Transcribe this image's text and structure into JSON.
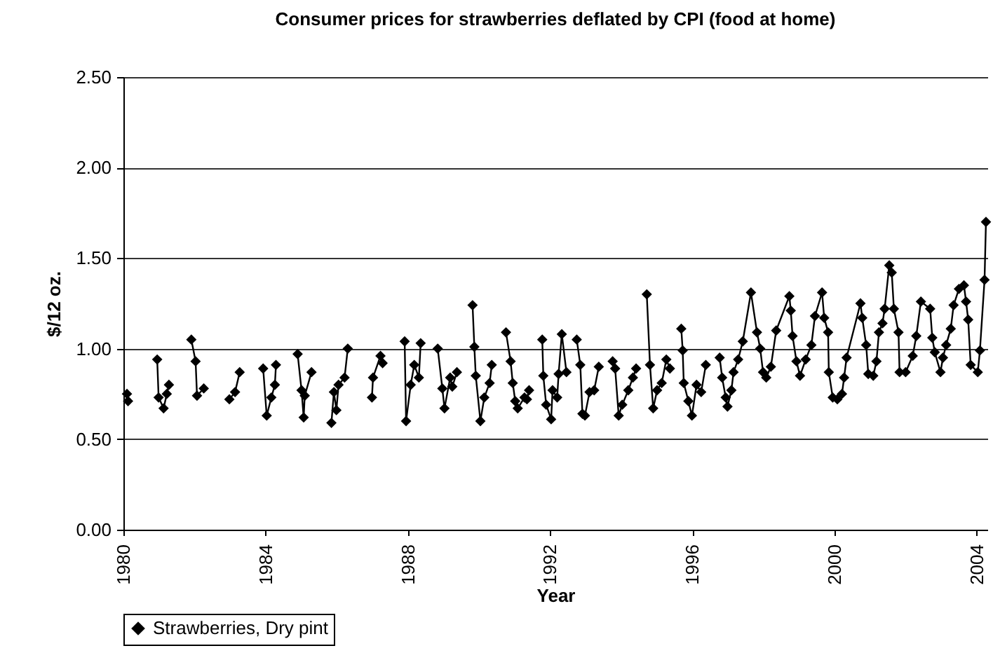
{
  "chart_data": {
    "type": "line",
    "title": "Consumer prices for strawberries deflated by CPI (food at home)",
    "xlabel": "Year",
    "ylabel": "$/12 oz.",
    "xlim": [
      1980,
      2004.3
    ],
    "xticks": [
      1980,
      1984,
      1988,
      1992,
      1996,
      2000,
      2004
    ],
    "ylim": [
      0,
      2.5
    ],
    "yticks": [
      {
        "value": 0,
        "label": "0.00"
      },
      {
        "value": 0.5,
        "label": "0.50"
      },
      {
        "value": 1,
        "label": "1.00"
      },
      {
        "value": 1.5,
        "label": "1.50"
      },
      {
        "value": 2,
        "label": "2.00"
      },
      {
        "value": 2.5,
        "label": "2.50"
      }
    ],
    "grid": "y",
    "legend": "bottom",
    "marker": "diamond",
    "line_style": "solid",
    "series": [
      {
        "name": "Strawberries, Dry pint",
        "color": "#000000",
        "x": [
          1980.1,
          1980.13,
          1980.5,
          1980.95,
          1980.99,
          1981.13,
          1981.22,
          1981.28,
          1981.6,
          1981.91,
          1982.03,
          1982.07,
          1982.26,
          1982.6,
          1982.98,
          1983.14,
          1983.27,
          1983.6,
          1983.93,
          1984.03,
          1984.16,
          1984.26,
          1984.29,
          1984.6,
          1984.9,
          1985.01,
          1985.07,
          1985.1,
          1985.29,
          1985.6,
          1985.85,
          1985.92,
          1985.99,
          1986.05,
          1986.22,
          1986.31,
          1986.6,
          1986.99,
          1987.02,
          1987.23,
          1987.29,
          1987.6,
          1987.91,
          1987.95,
          1988.08,
          1988.18,
          1988.31,
          1988.36,
          1988.6,
          1988.84,
          1988.97,
          1989.03,
          1989.19,
          1989.25,
          1989.38,
          1989.6,
          1989.82,
          1989.87,
          1989.91,
          1990.04,
          1990.15,
          1990.3,
          1990.36,
          1990.55,
          1990.76,
          1990.89,
          1990.95,
          1991.02,
          1991.09,
          1991.28,
          1991.35,
          1991.41,
          1991.6,
          1991.78,
          1991.81,
          1991.89,
          1992.03,
          1992.07,
          1992.2,
          1992.24,
          1992.33,
          1992.46,
          1992.6,
          1992.75,
          1992.85,
          1992.91,
          1992.98,
          1993.11,
          1993.24,
          1993.37,
          1993.55,
          1993.76,
          1993.83,
          1993.93,
          1994.03,
          1994.2,
          1994.33,
          1994.42,
          1994.57,
          1994.72,
          1994.81,
          1994.9,
          1995.01,
          1995.14,
          1995.27,
          1995.37,
          1995.53,
          1995.69,
          1995.73,
          1995.76,
          1995.89,
          1995.99,
          1996.12,
          1996.25,
          1996.38,
          1996.57,
          1996.77,
          1996.84,
          1996.94,
          1996.99,
          1997.1,
          1997.16,
          1997.29,
          1997.42,
          1997.65,
          1997.82,
          1997.91,
          1997.99,
          1998.08,
          1998.21,
          1998.36,
          1998.73,
          1998.77,
          1998.82,
          1998.93,
          1999.03,
          1999.19,
          1999.35,
          1999.45,
          1999.65,
          1999.71,
          1999.82,
          1999.84,
          1999.95,
          2000.08,
          2000.21,
          2000.27,
          2000.34,
          2000.73,
          2000.78,
          2000.89,
          2000.95,
          2001.09,
          2001.18,
          2001.25,
          2001.35,
          2001.41,
          2001.54,
          2001.61,
          2001.67,
          2001.8,
          2001.83,
          2002.0,
          2002.2,
          2002.3,
          2002.43,
          2002.69,
          2002.75,
          2002.82,
          2002.98,
          2003.05,
          2003.14,
          2003.27,
          2003.35,
          2003.5,
          2003.64,
          2003.7,
          2003.76,
          2003.83,
          2004.03,
          2004.09,
          2004.22,
          2004.26
        ],
        "values": [
          0.75,
          0.71,
          null,
          0.94,
          0.73,
          0.67,
          0.75,
          0.8,
          null,
          1.05,
          0.93,
          0.74,
          0.78,
          null,
          0.72,
          0.76,
          0.87,
          null,
          0.89,
          0.63,
          0.73,
          0.8,
          0.91,
          null,
          0.97,
          0.77,
          0.62,
          0.74,
          0.87,
          null,
          0.59,
          0.76,
          0.66,
          0.8,
          0.84,
          1.0,
          null,
          0.73,
          0.84,
          0.96,
          0.92,
          null,
          1.04,
          0.6,
          0.8,
          0.91,
          0.84,
          1.03,
          null,
          1.0,
          0.78,
          0.67,
          0.84,
          0.79,
          0.87,
          null,
          1.24,
          1.01,
          0.85,
          0.6,
          0.73,
          0.81,
          0.91,
          null,
          1.09,
          0.93,
          0.81,
          0.71,
          0.67,
          0.73,
          0.72,
          0.77,
          null,
          1.05,
          0.85,
          0.69,
          0.61,
          0.77,
          0.73,
          0.86,
          1.08,
          0.87,
          null,
          1.05,
          0.91,
          0.64,
          0.63,
          0.76,
          0.77,
          0.9,
          null,
          0.93,
          0.89,
          0.63,
          0.69,
          0.77,
          0.84,
          0.89,
          null,
          1.3,
          0.91,
          0.67,
          0.77,
          0.81,
          0.94,
          0.89,
          null,
          1.11,
          0.99,
          0.81,
          0.71,
          0.63,
          0.8,
          0.76,
          0.91,
          null,
          0.95,
          0.84,
          0.73,
          0.68,
          0.77,
          0.87,
          0.94,
          1.04,
          1.31,
          1.09,
          1.0,
          0.87,
          0.84,
          0.9,
          1.1,
          1.29,
          1.21,
          1.07,
          0.93,
          0.85,
          0.94,
          1.02,
          1.18,
          1.31,
          1.17,
          1.09,
          0.87,
          0.73,
          0.72,
          0.75,
          0.84,
          0.95,
          1.25,
          1.17,
          1.02,
          0.86,
          0.85,
          0.93,
          1.09,
          1.14,
          1.22,
          1.46,
          1.42,
          1.22,
          1.09,
          0.87,
          0.87,
          0.96,
          1.07,
          1.26,
          1.22,
          1.06,
          0.98,
          0.87,
          0.95,
          1.02,
          1.11,
          1.24,
          1.33,
          1.35,
          1.26,
          1.16,
          0.91,
          0.87,
          0.99,
          1.38,
          1.7
        ]
      }
    ]
  }
}
